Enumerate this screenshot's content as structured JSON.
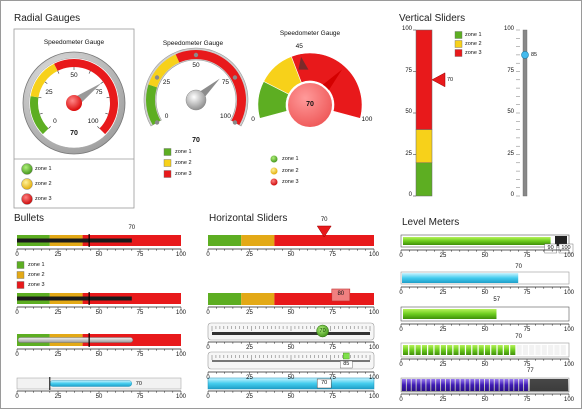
{
  "sections": {
    "radial_gauges": "Radial Gauges",
    "vertical_sliders": "Vertical Sliders",
    "bullets": "Bullets",
    "horizontal_sliders": "Horizontal Sliders",
    "level_meters": "Level Meters"
  },
  "legend": {
    "zone1": "zone 1",
    "zone2": "zone 2",
    "zone3": "zone 3"
  },
  "colors": {
    "green": "#5dae22",
    "yellow": "#f7d11a",
    "red": "#e8191b",
    "cyan": "#44ccee",
    "purple": "#5b2dcc"
  },
  "gauges": [
    {
      "title": "Speedometer Gauge",
      "value": 70,
      "ticks": [
        "0",
        "25",
        "50",
        "75",
        "100"
      ],
      "max_label": "100"
    },
    {
      "title": "Speedometer Gauge",
      "value": 70,
      "ticks": [
        "0",
        "25",
        "50",
        "75",
        "100"
      ]
    },
    {
      "title": "Speedometer Gauge",
      "value": 70,
      "ticks": [
        "0",
        "45",
        "100"
      ]
    }
  ],
  "vertical_sliders": [
    {
      "value": 70,
      "ticks": [
        "100",
        "75",
        "50",
        "25",
        "0"
      ]
    },
    {
      "value": 85,
      "ticks": [
        "100",
        "75",
        "50",
        "25",
        "0"
      ]
    }
  ],
  "bullets": [
    {
      "value": 70,
      "label": "70",
      "ticks": [
        "0",
        "25",
        "50",
        "75",
        "100"
      ]
    },
    {
      "value": 70,
      "ticks": [
        "0",
        "25",
        "50",
        "75",
        "100"
      ]
    },
    {
      "value": 70,
      "ticks": [
        "0",
        "25",
        "50",
        "75",
        "100"
      ]
    },
    {
      "value": 70,
      "label": "70",
      "ticks": [
        "0",
        "25",
        "50",
        "75",
        "100"
      ]
    }
  ],
  "hsliders": [
    {
      "value": 70,
      "label": "70",
      "ticks": [
        "0",
        "25",
        "50",
        "75",
        "100"
      ]
    },
    {
      "value": 80,
      "label": "80",
      "ticks": [
        "0",
        "25",
        "50",
        "75",
        "100"
      ]
    },
    {
      "value": 70,
      "label": "70",
      "ticks": [
        "0",
        "25",
        "50",
        "75",
        "100"
      ]
    },
    {
      "value": 85,
      "label": "85",
      "ticks": [
        "0",
        "25",
        "50",
        "75",
        "100"
      ]
    },
    {
      "value": 70,
      "label": "70",
      "ticks": [
        "0",
        "25",
        "50",
        "75",
        "100"
      ]
    }
  ],
  "meters": [
    {
      "value": 90,
      "label": "90",
      "max_label": "100",
      "ticks": [
        "0",
        "25",
        "50",
        "75",
        "100"
      ]
    },
    {
      "value": 70,
      "label": "70",
      "ticks": [
        "0",
        "25",
        "50",
        "75",
        "100"
      ]
    },
    {
      "value": 57,
      "label": "57",
      "ticks": [
        "0",
        "25",
        "50",
        "75",
        "100"
      ]
    },
    {
      "value": 70,
      "label": "70",
      "ticks": [
        "0",
        "25",
        "50",
        "75",
        "100"
      ]
    },
    {
      "value": 77,
      "label": "77",
      "ticks": [
        "0",
        "25",
        "50",
        "75",
        "100"
      ]
    }
  ]
}
